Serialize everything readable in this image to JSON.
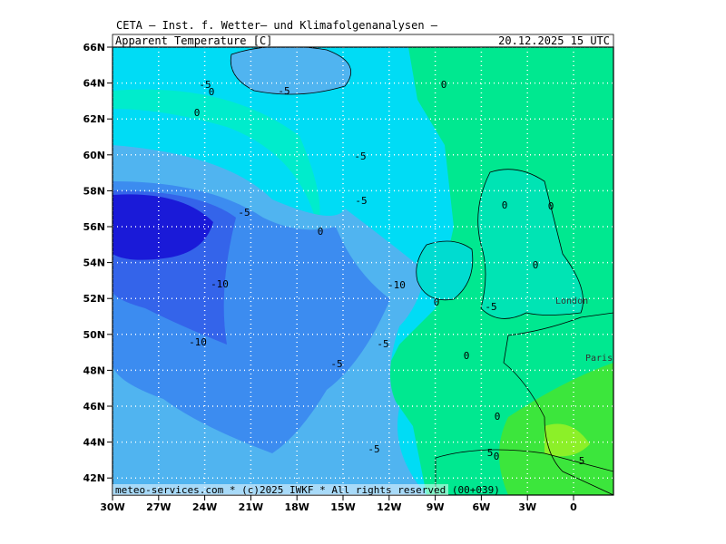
{
  "header": {
    "institute": "CETA — Inst. f. Wetter— und Klimafolgenanalysen —",
    "title": "Apparent_Temperature [C]",
    "valid_time": "20.12.2025 15 UTC"
  },
  "map": {
    "lat_labels": [
      "66N",
      "64N",
      "62N",
      "60N",
      "58N",
      "56N",
      "54N",
      "52N",
      "50N",
      "48N",
      "46N",
      "44N",
      "42N"
    ],
    "lon_labels": [
      "30W",
      "27W",
      "24W",
      "21W",
      "18W",
      "15W",
      "12W",
      "9W",
      "6W",
      "3W",
      "0"
    ],
    "contour_labels": [
      "-5",
      "0",
      "-5",
      "0",
      "0",
      "-5",
      "-5",
      "-5",
      "0",
      "0",
      "-10",
      "-10",
      "0",
      "0",
      "0",
      "-5",
      "-10",
      "-5",
      "0",
      "-5",
      "0",
      "-5",
      "5",
      "0",
      "5"
    ],
    "cities": [
      "London",
      "Paris"
    ],
    "footer": "meteo-services.com * (c)2025 IWKF * All rights reserved (00+039)"
  }
}
